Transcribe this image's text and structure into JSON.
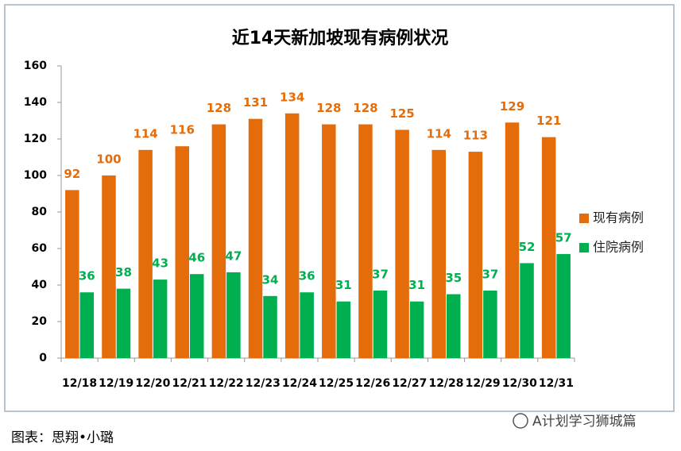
{
  "chart_data": {
    "type": "bar",
    "title": "近14天新加坡现有病例状况",
    "categories": [
      "12/18",
      "12/19",
      "12/20",
      "12/21",
      "12/22",
      "12/23",
      "12/24",
      "12/25",
      "12/26",
      "12/27",
      "12/28",
      "12/29",
      "12/30",
      "12/31"
    ],
    "series": [
      {
        "name": "现有病例",
        "color": "#e46c0a",
        "values": [
          92,
          100,
          114,
          116,
          128,
          131,
          134,
          128,
          128,
          125,
          114,
          113,
          129,
          121
        ]
      },
      {
        "name": "住院病例",
        "color": "#00b050",
        "values": [
          36,
          38,
          43,
          46,
          47,
          34,
          36,
          31,
          37,
          31,
          35,
          37,
          52,
          57
        ]
      }
    ],
    "ylim": [
      0,
      160
    ],
    "yticks": [
      0,
      20,
      40,
      60,
      80,
      100,
      120,
      140,
      160
    ],
    "grid": false,
    "legend": "right",
    "data_labels": true
  },
  "caption": "图表：思翔•小璐",
  "watermark": "A计划学习狮城篇"
}
